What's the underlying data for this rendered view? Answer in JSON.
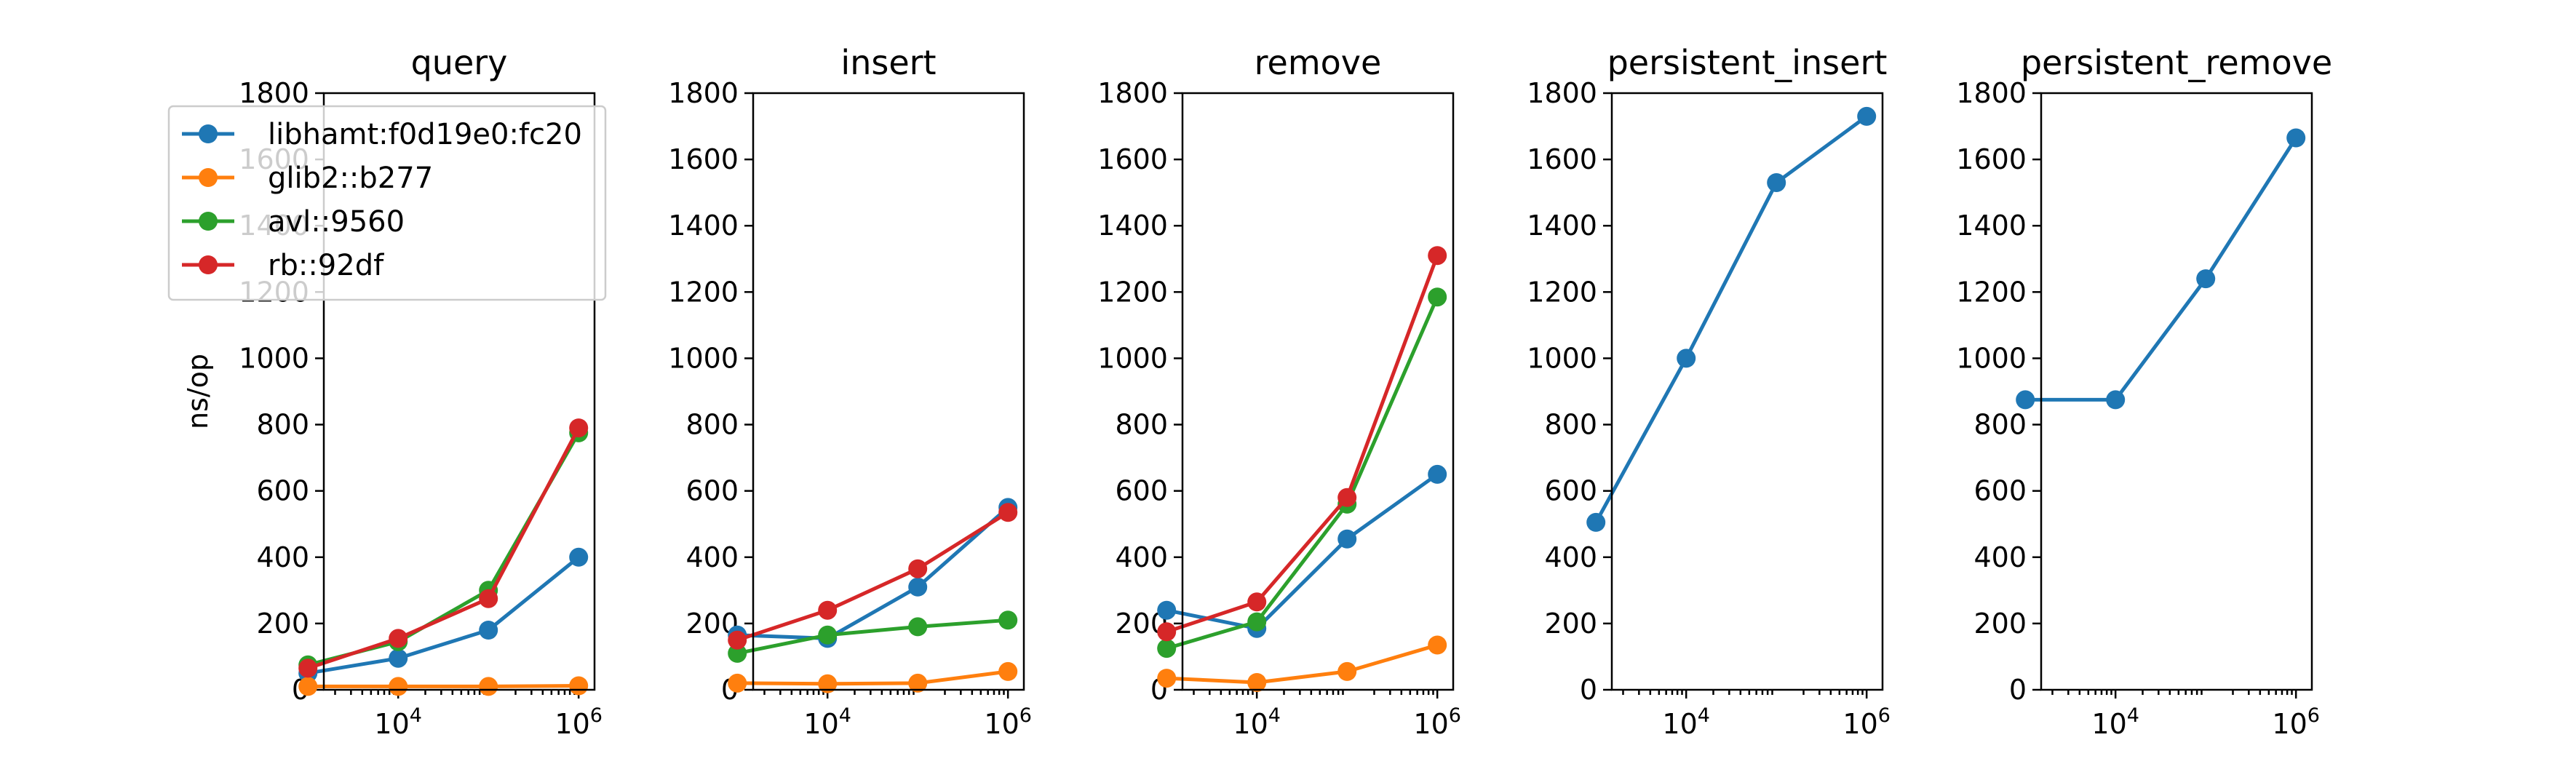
{
  "colors": {
    "libhamt": "#1f77b4",
    "glib2": "#ff7f0e",
    "avl": "#2ca02c",
    "rb": "#d62728"
  },
  "series_names": [
    "libhamt:f0d19e0:fc20",
    "glib2::b277",
    "avl::9560",
    "rb::92df"
  ],
  "ylabel": "ns/op",
  "x_ticks": [
    {
      "value": 10000,
      "base": "10",
      "exp": "4"
    },
    {
      "value": 1000000,
      "base": "10",
      "exp": "6"
    }
  ],
  "y_ticks": [
    0,
    200,
    400,
    600,
    800,
    1000,
    1200,
    1400,
    1600,
    1800
  ],
  "chart_data": [
    {
      "type": "line",
      "title": "query",
      "xscale": "log",
      "xlim": [
        1500,
        1500000
      ],
      "ylim": [
        0,
        1800
      ],
      "legend": "upper-left",
      "x": [
        1000,
        10000,
        100000,
        1000000
      ],
      "series": [
        {
          "name": "libhamt:f0d19e0:fc20",
          "color": "#1f77b4",
          "values": [
            50,
            95,
            180,
            400
          ]
        },
        {
          "name": "glib2::b277",
          "color": "#ff7f0e",
          "values": [
            10,
            10,
            10,
            12
          ]
        },
        {
          "name": "avl::9560",
          "color": "#2ca02c",
          "values": [
            75,
            145,
            300,
            775
          ]
        },
        {
          "name": "rb::92df",
          "color": "#d62728",
          "values": [
            65,
            155,
            275,
            790
          ]
        }
      ]
    },
    {
      "type": "line",
      "title": "insert",
      "xscale": "log",
      "xlim": [
        1500,
        1500000
      ],
      "ylim": [
        0,
        1800
      ],
      "x": [
        1000,
        10000,
        100000,
        1000000
      ],
      "series": [
        {
          "name": "libhamt:f0d19e0:fc20",
          "color": "#1f77b4",
          "values": [
            165,
            155,
            310,
            550
          ]
        },
        {
          "name": "glib2::b277",
          "color": "#ff7f0e",
          "values": [
            20,
            18,
            20,
            55
          ]
        },
        {
          "name": "avl::9560",
          "color": "#2ca02c",
          "values": [
            110,
            165,
            190,
            210
          ]
        },
        {
          "name": "rb::92df",
          "color": "#d62728",
          "values": [
            150,
            240,
            365,
            535
          ]
        }
      ]
    },
    {
      "type": "line",
      "title": "remove",
      "xscale": "log",
      "xlim": [
        1500,
        1500000
      ],
      "ylim": [
        0,
        1800
      ],
      "x": [
        1000,
        10000,
        100000,
        1000000
      ],
      "series": [
        {
          "name": "libhamt:f0d19e0:fc20",
          "color": "#1f77b4",
          "values": [
            240,
            185,
            455,
            650
          ]
        },
        {
          "name": "glib2::b277",
          "color": "#ff7f0e",
          "values": [
            35,
            22,
            55,
            135
          ]
        },
        {
          "name": "avl::9560",
          "color": "#2ca02c",
          "values": [
            125,
            205,
            560,
            1185
          ]
        },
        {
          "name": "rb::92df",
          "color": "#d62728",
          "values": [
            175,
            265,
            580,
            1310
          ]
        }
      ]
    },
    {
      "type": "line",
      "title": "persistent_insert",
      "xscale": "log",
      "xlim": [
        1500,
        1500000
      ],
      "ylim": [
        0,
        1800
      ],
      "x": [
        1000,
        10000,
        100000,
        1000000
      ],
      "series": [
        {
          "name": "libhamt:f0d19e0:fc20",
          "color": "#1f77b4",
          "values": [
            505,
            1000,
            1530,
            1730
          ]
        }
      ]
    },
    {
      "type": "line",
      "title": "persistent_remove",
      "xscale": "log",
      "xlim": [
        1500,
        1500000
      ],
      "ylim": [
        0,
        1800
      ],
      "x": [
        1000,
        10000,
        100000,
        1000000
      ],
      "series": [
        {
          "name": "libhamt:f0d19e0:fc20",
          "color": "#1f77b4",
          "values": [
            875,
            875,
            1240,
            1665
          ]
        }
      ]
    }
  ]
}
